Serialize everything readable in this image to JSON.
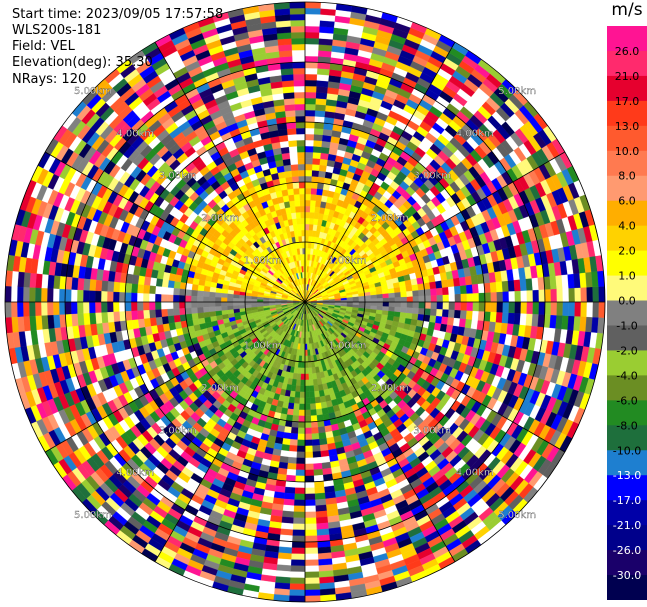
{
  "header": {
    "start_time": "Start time: 2023/09/05 17:57:58",
    "instrument": "WLS200s-181",
    "field": "Field: VEL",
    "elevation": "Elevation(deg): 35.30",
    "nrays": "NRays: 120"
  },
  "chart_data": {
    "type": "heatmap",
    "projection": "polar-ppi",
    "field": "VEL",
    "units": "m/s",
    "nrays": 120,
    "ring_labels": [
      "1.00km",
      "2.00km",
      "3.00km",
      "4.00km",
      "5.00km"
    ],
    "ring_ranges_km": [
      1,
      2,
      3,
      4,
      5
    ],
    "max_range_km": 5.0,
    "noise_begins_km": 2.0,
    "colorbar": {
      "title": "m/s",
      "tick_labels": [
        "26.0",
        "21.0",
        "17.0",
        "13.0",
        "10.0",
        "8.0",
        "6.0",
        "4.0",
        "2.0",
        "1.0",
        "0.0",
        "-1.0",
        "-2.0",
        "-4.0",
        "-6.0",
        "-8.0",
        "-10.0",
        "-13.0",
        "-17.0",
        "-21.0",
        "-26.0",
        "-30.0"
      ],
      "colors": [
        "#ff1493",
        "#ff2a6d",
        "#e6002e",
        "#ff3a1a",
        "#ff5a2e",
        "#ff7a50",
        "#ff9a70",
        "#ffae00",
        "#ffd200",
        "#ffff00",
        "#fffa7a",
        "#808080",
        "#606060",
        "#9acd32",
        "#6b8e23",
        "#228b22",
        "#1e6f3c",
        "#1e7fd0",
        "#0000ff",
        "#0000a8",
        "#00008b",
        "#1a006a",
        "#000050"
      ]
    },
    "inner_region": {
      "upper_half": "positive (yellow/orange)",
      "lower_half": "negative (olive/green)",
      "horizontal_band": "near zero (gray)"
    }
  }
}
